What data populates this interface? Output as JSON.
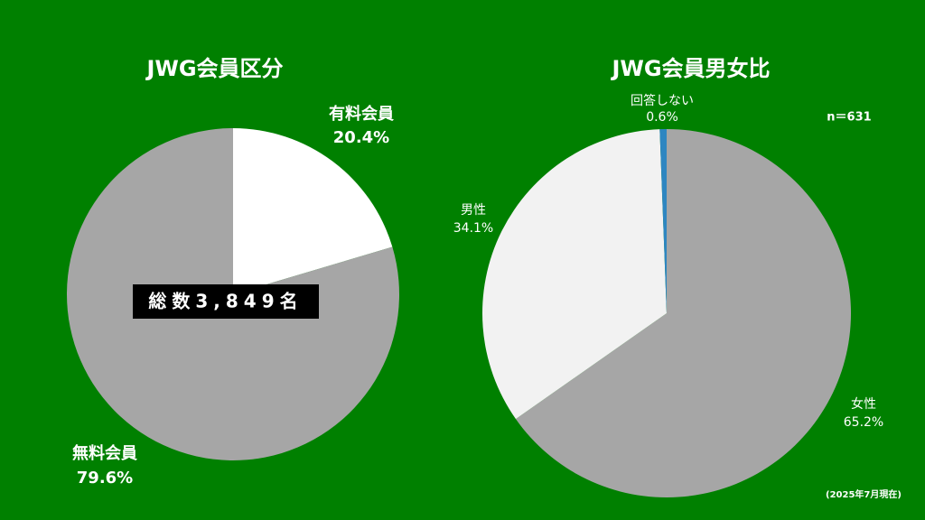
{
  "chart_data": [
    {
      "type": "pie",
      "title": "JWG会員区分",
      "categories": [
        "有料会員",
        "無料会員"
      ],
      "values": [
        20.4,
        79.6
      ],
      "value_labels": [
        "20.4%",
        "79.6%"
      ],
      "colors": [
        "#ffffff",
        "#a6a6a6"
      ],
      "annotation": "総数3,849名"
    },
    {
      "type": "pie",
      "title": "JWG会員男女比",
      "categories": [
        "女性",
        "男性",
        "回答しない"
      ],
      "values": [
        65.2,
        34.1,
        0.6
      ],
      "value_labels": [
        "65.2%",
        "34.1%",
        "0.6%"
      ],
      "colors": [
        "#a6a6a6",
        "#f2f2f2",
        "#2e86c1"
      ],
      "note": "n＝631",
      "footnote": "(2025年7月現在)"
    }
  ]
}
